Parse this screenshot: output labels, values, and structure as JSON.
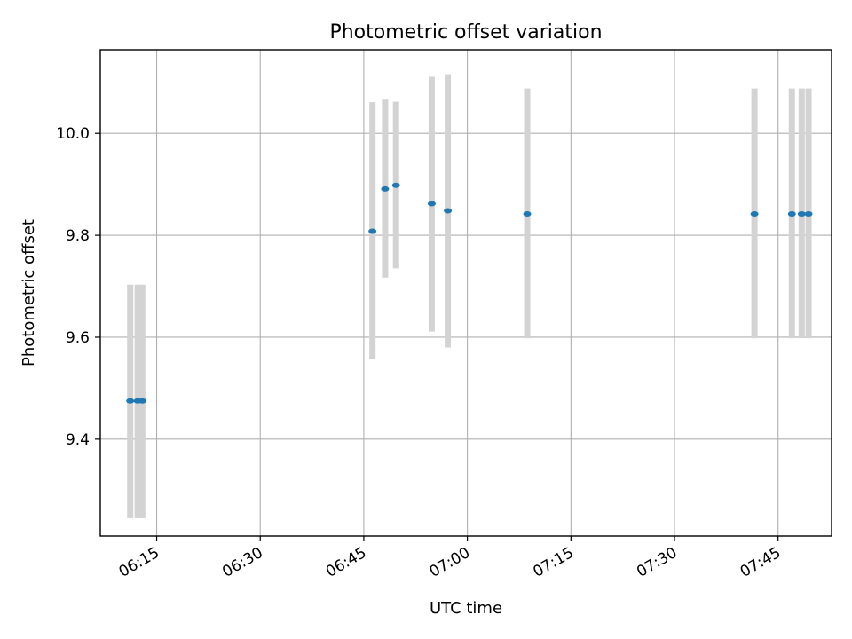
{
  "chart_data": {
    "type": "scatter",
    "title": "Photometric offset variation",
    "xlabel": "UTC time",
    "ylabel": "Photometric offset",
    "x_axis_type": "time",
    "xlim": [
      "06:06:50",
      "07:52:45"
    ],
    "ylim": [
      9.21,
      10.164
    ],
    "x_ticks": [
      "06:15",
      "06:30",
      "06:45",
      "07:00",
      "07:15",
      "07:30",
      "07:45"
    ],
    "y_ticks": [
      9.4,
      9.6,
      9.8,
      10.0
    ],
    "y_tick_labels": [
      "9.4",
      "9.6",
      "9.8",
      "10.0"
    ],
    "grid": true,
    "x_tick_label_rotation": "30-degree",
    "series": [
      {
        "values": [
          {
            "x": "06:11:10",
            "y": 9.475,
            "err_low": 9.245,
            "err_high": 9.703
          },
          {
            "x": "06:12:15",
            "y": 9.475,
            "err_low": 9.245,
            "err_high": 9.703
          },
          {
            "x": "06:12:55",
            "y": 9.475,
            "err_low": 9.245,
            "err_high": 9.703
          },
          {
            "x": "06:46:15",
            "y": 9.808,
            "err_low": 9.557,
            "err_high": 10.061
          },
          {
            "x": "06:48:05",
            "y": 9.891,
            "err_low": 9.717,
            "err_high": 10.066
          },
          {
            "x": "06:49:40",
            "y": 9.898,
            "err_low": 9.735,
            "err_high": 10.062
          },
          {
            "x": "06:54:50",
            "y": 9.862,
            "err_low": 9.611,
            "err_high": 10.111
          },
          {
            "x": "06:57:10",
            "y": 9.848,
            "err_low": 9.58,
            "err_high": 10.116
          },
          {
            "x": "07:08:40",
            "y": 9.842,
            "err_low": 9.598,
            "err_high": 10.088
          },
          {
            "x": "07:41:35",
            "y": 9.842,
            "err_low": 9.598,
            "err_high": 10.088
          },
          {
            "x": "07:47:00",
            "y": 9.842,
            "err_low": 9.598,
            "err_high": 10.088
          },
          {
            "x": "07:48:25",
            "y": 9.842,
            "err_low": 9.598,
            "err_high": 10.088
          },
          {
            "x": "07:49:25",
            "y": 9.842,
            "err_low": 9.598,
            "err_high": 10.088
          }
        ]
      }
    ],
    "colors": {
      "marker": "#1f77b4",
      "errorbar": "#d3d3d3",
      "grid": "#b0b0b0",
      "frame": "#000000"
    }
  }
}
